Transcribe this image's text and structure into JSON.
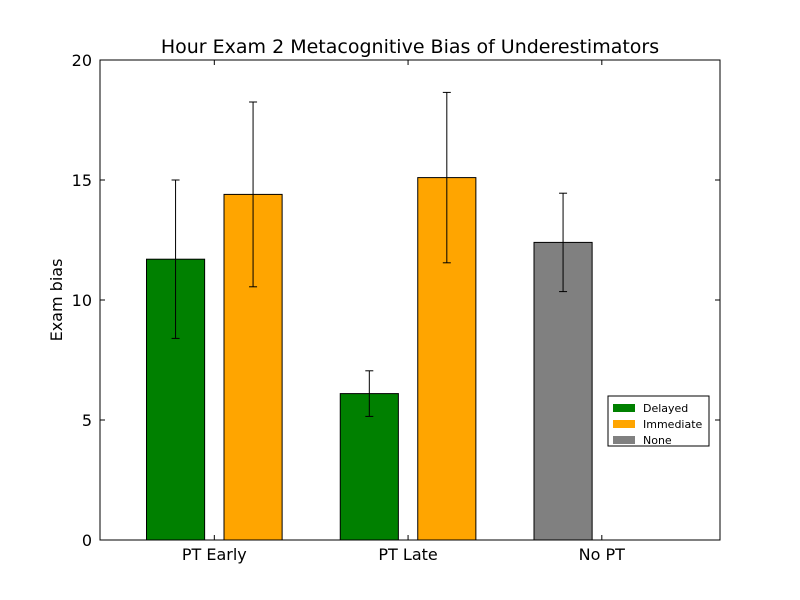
{
  "chart_data": {
    "type": "bar",
    "title": "Hour Exam 2 Metacognitive Bias of Underestimators",
    "xlabel": "",
    "ylabel": "Exam bias",
    "ylim": [
      0,
      20
    ],
    "yticks": [
      0,
      5,
      10,
      15,
      20
    ],
    "categories": [
      "PT Early",
      "PT Late",
      "No PT"
    ],
    "grid": false,
    "legend_position": "lower-right",
    "series": [
      {
        "name": "Delayed",
        "color": "#008000",
        "values": [
          11.7,
          6.1,
          null
        ],
        "errors": [
          3.3,
          0.95,
          null
        ]
      },
      {
        "name": "Immediate",
        "color": "#ffa500",
        "values": [
          14.4,
          15.1,
          null
        ],
        "errors": [
          3.85,
          3.55,
          null
        ]
      },
      {
        "name": "None",
        "color": "#808080",
        "values": [
          null,
          null,
          12.4
        ],
        "errors": [
          null,
          null,
          2.05
        ]
      }
    ]
  }
}
